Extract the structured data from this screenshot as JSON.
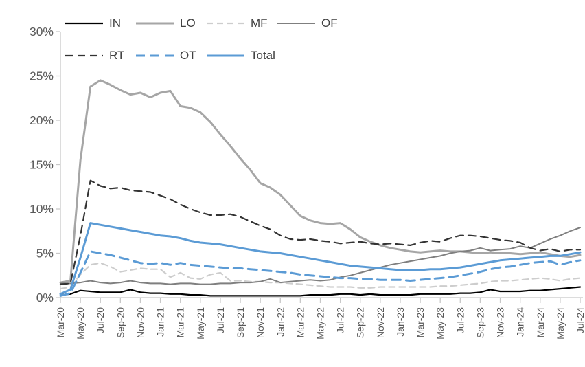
{
  "chart_data": {
    "type": "line",
    "title": "",
    "xlabel": "",
    "ylabel": "",
    "legend_position": "top",
    "grid": false,
    "y_range": [
      0,
      30
    ],
    "y_tick_step": 5,
    "y_tick_labels": [
      "0%",
      "5%",
      "10%",
      "15%",
      "20%",
      "25%",
      "30%"
    ],
    "x_tick_every": 2,
    "axis_color": "#c8c8c8",
    "tick_label_color": "#595959",
    "x": [
      "Mar-20",
      "Apr-20",
      "May-20",
      "Jun-20",
      "Jul-20",
      "Aug-20",
      "Sep-20",
      "Oct-20",
      "Nov-20",
      "Dec-20",
      "Jan-21",
      "Feb-21",
      "Mar-21",
      "Apr-21",
      "May-21",
      "Jun-21",
      "Jul-21",
      "Aug-21",
      "Sep-21",
      "Oct-21",
      "Nov-21",
      "Dec-21",
      "Jan-22",
      "Feb-22",
      "Mar-22",
      "Apr-22",
      "May-22",
      "Jun-22",
      "Jul-22",
      "Aug-22",
      "Sep-22",
      "Oct-22",
      "Nov-22",
      "Dec-22",
      "Jan-23",
      "Feb-23",
      "Mar-23",
      "Apr-23",
      "May-23",
      "Jun-23",
      "Jul-23",
      "Aug-23",
      "Sep-23",
      "Oct-23",
      "Nov-23",
      "Dec-23",
      "Jan-24",
      "Feb-24",
      "Mar-24",
      "Apr-24",
      "May-24",
      "Jun-24",
      "Jul-24"
    ],
    "series": [
      {
        "name": "IN",
        "color": "#000000",
        "style": "solid",
        "dasharray": "",
        "width": 2.2,
        "values": [
          0.3,
          0.4,
          0.8,
          0.7,
          0.6,
          0.6,
          0.6,
          0.9,
          0.6,
          0.5,
          0.5,
          0.4,
          0.4,
          0.3,
          0.3,
          0.2,
          0.2,
          0.2,
          0.2,
          0.2,
          0.2,
          0.2,
          0.2,
          0.2,
          0.2,
          0.3,
          0.3,
          0.3,
          0.4,
          0.4,
          0.3,
          0.4,
          0.3,
          0.3,
          0.3,
          0.3,
          0.4,
          0.4,
          0.4,
          0.4,
          0.5,
          0.5,
          0.6,
          0.9,
          0.7,
          0.7,
          0.7,
          0.8,
          0.8,
          0.9,
          1.0,
          1.1,
          1.2
        ]
      },
      {
        "name": "LO",
        "color": "#a6a6a6",
        "style": "solid",
        "dasharray": "",
        "width": 3,
        "values": [
          1.7,
          1.9,
          15.5,
          23.8,
          24.5,
          24.0,
          23.4,
          22.9,
          23.1,
          22.6,
          23.1,
          23.3,
          21.6,
          21.4,
          20.9,
          19.8,
          18.4,
          17.1,
          15.7,
          14.4,
          12.9,
          12.4,
          11.6,
          10.4,
          9.2,
          8.7,
          8.4,
          8.3,
          8.4,
          7.7,
          6.8,
          6.3,
          5.9,
          5.6,
          5.4,
          5.2,
          5.1,
          5.2,
          5.3,
          5.2,
          5.2,
          5.1,
          5.0,
          5.1,
          5.0,
          5.0,
          4.9,
          5.0,
          5.1,
          4.9,
          4.7,
          4.6,
          4.8
        ]
      },
      {
        "name": "MF",
        "color": "#cdcdcd",
        "style": "dashed",
        "dasharray": "9 6",
        "width": 2.2,
        "values": [
          1.0,
          1.2,
          2.6,
          3.7,
          3.9,
          3.5,
          2.9,
          3.1,
          3.3,
          3.2,
          3.2,
          2.3,
          2.8,
          2.2,
          2.1,
          2.6,
          2.8,
          1.9,
          1.9,
          1.8,
          1.8,
          1.7,
          1.7,
          1.6,
          1.5,
          1.4,
          1.3,
          1.2,
          1.2,
          1.2,
          1.1,
          1.1,
          1.2,
          1.2,
          1.2,
          1.2,
          1.2,
          1.2,
          1.3,
          1.3,
          1.4,
          1.5,
          1.6,
          1.8,
          1.9,
          1.9,
          2.0,
          2.1,
          2.2,
          2.1,
          1.9,
          2.1,
          2.2
        ]
      },
      {
        "name": "OF",
        "color": "#7f7f7f",
        "style": "solid",
        "dasharray": "",
        "width": 2,
        "values": [
          1.6,
          1.6,
          1.7,
          1.9,
          1.7,
          1.6,
          1.7,
          1.9,
          1.7,
          1.6,
          1.6,
          1.5,
          1.6,
          1.6,
          1.5,
          1.5,
          1.6,
          1.6,
          1.7,
          1.7,
          1.8,
          2.1,
          1.7,
          1.8,
          1.9,
          2.0,
          1.9,
          2.0,
          2.3,
          2.5,
          2.8,
          3.1,
          3.4,
          3.7,
          3.9,
          4.1,
          4.3,
          4.5,
          4.7,
          5.0,
          5.2,
          5.3,
          5.6,
          5.3,
          5.4,
          5.5,
          5.8,
          5.6,
          6.1,
          6.6,
          7.0,
          7.5,
          7.9
        ]
      },
      {
        "name": "RT",
        "color": "#333333",
        "style": "dashed",
        "dasharray": "11 7",
        "width": 2.2,
        "values": [
          1.5,
          1.6,
          7.0,
          13.2,
          12.6,
          12.3,
          12.4,
          12.1,
          12.0,
          11.9,
          11.5,
          11.1,
          10.5,
          10.0,
          9.6,
          9.3,
          9.3,
          9.4,
          9.1,
          8.6,
          8.1,
          7.7,
          7.0,
          6.6,
          6.5,
          6.6,
          6.4,
          6.3,
          6.1,
          6.2,
          6.3,
          6.1,
          6.0,
          6.1,
          6.0,
          5.9,
          6.2,
          6.4,
          6.3,
          6.7,
          7.0,
          7.0,
          6.9,
          6.7,
          6.5,
          6.4,
          6.2,
          5.6,
          5.3,
          5.5,
          5.2,
          5.4,
          5.4
        ]
      },
      {
        "name": "OT",
        "color": "#5b9bd5",
        "style": "dashed",
        "dasharray": "13 8",
        "width": 3,
        "values": [
          0.2,
          0.5,
          2.8,
          5.2,
          5.0,
          4.8,
          4.5,
          4.2,
          3.9,
          3.8,
          3.9,
          3.7,
          3.9,
          3.7,
          3.6,
          3.5,
          3.4,
          3.3,
          3.3,
          3.2,
          3.1,
          3.0,
          2.9,
          2.8,
          2.6,
          2.5,
          2.4,
          2.3,
          2.2,
          2.2,
          2.1,
          2.1,
          2.0,
          2.0,
          2.0,
          1.9,
          2.0,
          2.1,
          2.2,
          2.3,
          2.5,
          2.7,
          2.9,
          3.2,
          3.4,
          3.5,
          3.7,
          3.9,
          4.0,
          4.1,
          3.7,
          4.0,
          4.2
        ]
      },
      {
        "name": "Total",
        "color": "#5b9bd5",
        "style": "solid",
        "dasharray": "",
        "width": 3,
        "values": [
          0.4,
          0.9,
          4.5,
          8.4,
          8.2,
          8.0,
          7.8,
          7.6,
          7.4,
          7.2,
          7.0,
          6.9,
          6.7,
          6.4,
          6.2,
          6.1,
          6.0,
          5.8,
          5.6,
          5.4,
          5.2,
          5.1,
          5.0,
          4.8,
          4.6,
          4.4,
          4.2,
          4.0,
          3.8,
          3.6,
          3.5,
          3.4,
          3.3,
          3.2,
          3.1,
          3.1,
          3.1,
          3.2,
          3.2,
          3.3,
          3.4,
          3.6,
          3.8,
          4.0,
          4.2,
          4.3,
          4.4,
          4.5,
          4.6,
          4.7,
          4.7,
          4.9,
          5.1
        ]
      }
    ]
  }
}
